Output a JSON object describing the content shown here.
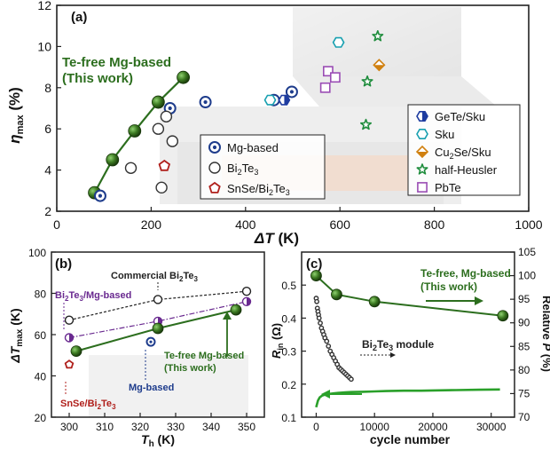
{
  "figure": {
    "panel_a": {
      "label": "(a)",
      "annotation_line1": "Te-free Mg-based",
      "annotation_line2": "(This work)",
      "x_label": "ΔT (K)",
      "y_label": "ηmax (%)",
      "legend_left": [
        {
          "name": "Mg-based",
          "marker": "circle-dot",
          "color": "#1e3c8c"
        },
        {
          "name": "Bi2Te3",
          "marker": "circle-open",
          "color": "#333333"
        },
        {
          "name": "SnSe/Bi2Te3",
          "marker": "pentagon",
          "color": "#b0201c"
        }
      ],
      "legend_right": [
        {
          "name": "GeTe/Sku",
          "marker": "hexagon-half",
          "color": "#1e3ca0"
        },
        {
          "name": "Sku",
          "marker": "hexagon",
          "color": "#18a0b0"
        },
        {
          "name": "Cu2Se/Sku",
          "marker": "diamond-half",
          "color": "#d08010"
        },
        {
          "name": "half-Heusler",
          "marker": "star",
          "color": "#1e8c3c"
        },
        {
          "name": "PbTe",
          "marker": "square",
          "color": "#9a4cb4"
        }
      ]
    },
    "panel_b": {
      "label": "(b)",
      "x_label": "Th (K)",
      "y_label": "ΔTmax (K)",
      "ann_commercial": "Commercial Bi2Te3",
      "ann_bi2te3_mg": "Bi2Te3/Mg-based",
      "ann_this_work_line1": "Te-free Mg-based",
      "ann_this_work_line2": "(This work)",
      "ann_mg": "Mg-based",
      "ann_snse": "SnSe/Bi2Te3"
    },
    "panel_c": {
      "label": "(c)",
      "x_label": "cycle number",
      "y_label_left": "Rin (Ω)",
      "y_label_right": "Relative P (%)",
      "ann_this_work_line1": "Te-free, Mg-based",
      "ann_this_work_line2": "(This work)",
      "ann_module": "Bi2Te3 module"
    }
  },
  "chart_data": [
    {
      "type": "scatter",
      "panel": "(a)",
      "xlabel": "ΔT (K)",
      "ylabel": "ηmax (%)",
      "xlim": [
        0,
        1000
      ],
      "ylim": [
        2,
        12
      ],
      "xticks": [
        0,
        200,
        400,
        600,
        800,
        1000
      ],
      "yticks": [
        2,
        4,
        6,
        8,
        10,
        12
      ],
      "series": [
        {
          "name": "Te-free Mg-based (This work)",
          "style": "line-marker",
          "color": "#2c6e1e",
          "x": [
            80,
            118,
            165,
            215,
            268
          ],
          "y": [
            2.9,
            4.5,
            5.9,
            7.3,
            8.5
          ]
        },
        {
          "name": "Mg-based",
          "color": "#1e3c8c",
          "x": [
            92,
            240,
            315,
            460,
            498
          ],
          "y": [
            2.75,
            7.0,
            7.3,
            7.4,
            7.8
          ]
        },
        {
          "name": "Bi2Te3",
          "color": "#333333",
          "x": [
            157,
            215,
            222,
            232,
            245
          ],
          "y": [
            4.1,
            6.0,
            3.15,
            6.6,
            5.4
          ]
        },
        {
          "name": "SnSe/Bi2Te3",
          "color": "#b0201c",
          "x": [
            228
          ],
          "y": [
            4.2
          ]
        },
        {
          "name": "GeTe/Sku",
          "color": "#1e3ca0",
          "x": [
            482
          ],
          "y": [
            7.4
          ]
        },
        {
          "name": "Sku",
          "color": "#18a0b0",
          "x": [
            452,
            597
          ],
          "y": [
            7.4,
            10.2
          ]
        },
        {
          "name": "Cu2Se/Sku",
          "color": "#d08010",
          "x": [
            683
          ],
          "y": [
            9.1
          ]
        },
        {
          "name": "half-Heusler",
          "color": "#1e8c3c",
          "x": [
            655,
            658,
            680
          ],
          "y": [
            6.2,
            8.3,
            10.5
          ]
        },
        {
          "name": "PbTe",
          "color": "#9a4cb4",
          "x": [
            569,
            575,
            590
          ],
          "y": [
            8.0,
            8.8,
            8.5
          ]
        }
      ]
    },
    {
      "type": "line",
      "panel": "(b)",
      "xlabel": "Th (K)",
      "ylabel": "ΔTmax (K)",
      "xlim": [
        295,
        355
      ],
      "ylim": [
        20,
        100
      ],
      "xticks": [
        300,
        310,
        320,
        330,
        340,
        350
      ],
      "yticks": [
        20,
        40,
        60,
        80,
        100
      ],
      "series": [
        {
          "name": "Commercial Bi2Te3",
          "style": "dashed",
          "color": "#222222",
          "marker": "circle-open",
          "x": [
            300,
            325,
            350
          ],
          "y": [
            67,
            77,
            81
          ]
        },
        {
          "name": "Bi2Te3/Mg-based",
          "style": "dashdot",
          "color": "#6a2a90",
          "marker": "circle-half",
          "x": [
            300,
            325,
            350
          ],
          "y": [
            58.5,
            66.5,
            76
          ]
        },
        {
          "name": "Te-free Mg-based (This work)",
          "style": "solid",
          "color": "#2c6e1e",
          "marker": "circle-filled",
          "x": [
            302,
            325,
            347
          ],
          "y": [
            52,
            63,
            72
          ]
        },
        {
          "name": "Mg-based",
          "style": "none",
          "color": "#1e3c8c",
          "marker": "circle-dot",
          "x": [
            323
          ],
          "y": [
            56.5
          ]
        },
        {
          "name": "SnSe/Bi2Te3",
          "style": "none",
          "color": "#b0201c",
          "marker": "pentagon",
          "x": [
            300
          ],
          "y": [
            45.5
          ]
        }
      ]
    },
    {
      "type": "line",
      "panel": "(c)",
      "xlabel": "cycle number",
      "ylabel_left": "Rin (Ω)",
      "ylabel_right": "Relative P (%)",
      "xlim": [
        -2500,
        34000
      ],
      "ylim_left": [
        0.1,
        0.6
      ],
      "ylim_right": [
        70,
        105
      ],
      "xticks": [
        0,
        10000,
        20000,
        30000
      ],
      "yticks_left": [
        0.1,
        0.2,
        0.3,
        0.4,
        0.5
      ],
      "yticks_right": [
        70,
        75,
        80,
        85,
        90,
        95,
        100,
        105
      ],
      "series": [
        {
          "name": "Te-free, Mg-based (This work) relative P",
          "axis": "right",
          "color": "#2c6e1e",
          "marker": "circle-filled",
          "x": [
            0,
            3500,
            10000,
            32000
          ],
          "y": [
            100.0,
            96.0,
            94.5,
            91.5
          ]
        },
        {
          "name": "Te-free Mg-based Rin",
          "axis": "left",
          "color": "#2aa02a",
          "marker": "none",
          "x": [
            0,
            300,
            600,
            1000,
            1500,
            2000,
            3000,
            4000,
            5000,
            6000,
            8000,
            10000,
            12000,
            15000,
            18000,
            20000,
            24000,
            28000,
            31500
          ],
          "y": [
            0.13,
            0.15,
            0.16,
            0.165,
            0.168,
            0.17,
            0.172,
            0.174,
            0.175,
            0.176,
            0.177,
            0.178,
            0.179,
            0.18,
            0.18,
            0.181,
            0.182,
            0.183,
            0.184
          ]
        },
        {
          "name": "Bi2Te3 module Rin",
          "axis": "left",
          "color": "#333333",
          "marker": "circle-open",
          "x": [
            0,
            100,
            200,
            300,
            400,
            500,
            700,
            900,
            1100,
            1300,
            1500,
            1800,
            2100,
            2400,
            2700,
            3000,
            3300,
            3600,
            3900,
            4200,
            4500,
            4800,
            5100,
            5400,
            5700,
            6000
          ],
          "y": [
            0.46,
            0.45,
            0.43,
            0.42,
            0.41,
            0.4,
            0.385,
            0.37,
            0.36,
            0.35,
            0.34,
            0.33,
            0.315,
            0.3,
            0.29,
            0.28,
            0.27,
            0.26,
            0.25,
            0.245,
            0.24,
            0.235,
            0.23,
            0.225,
            0.22,
            0.215
          ]
        }
      ]
    }
  ]
}
